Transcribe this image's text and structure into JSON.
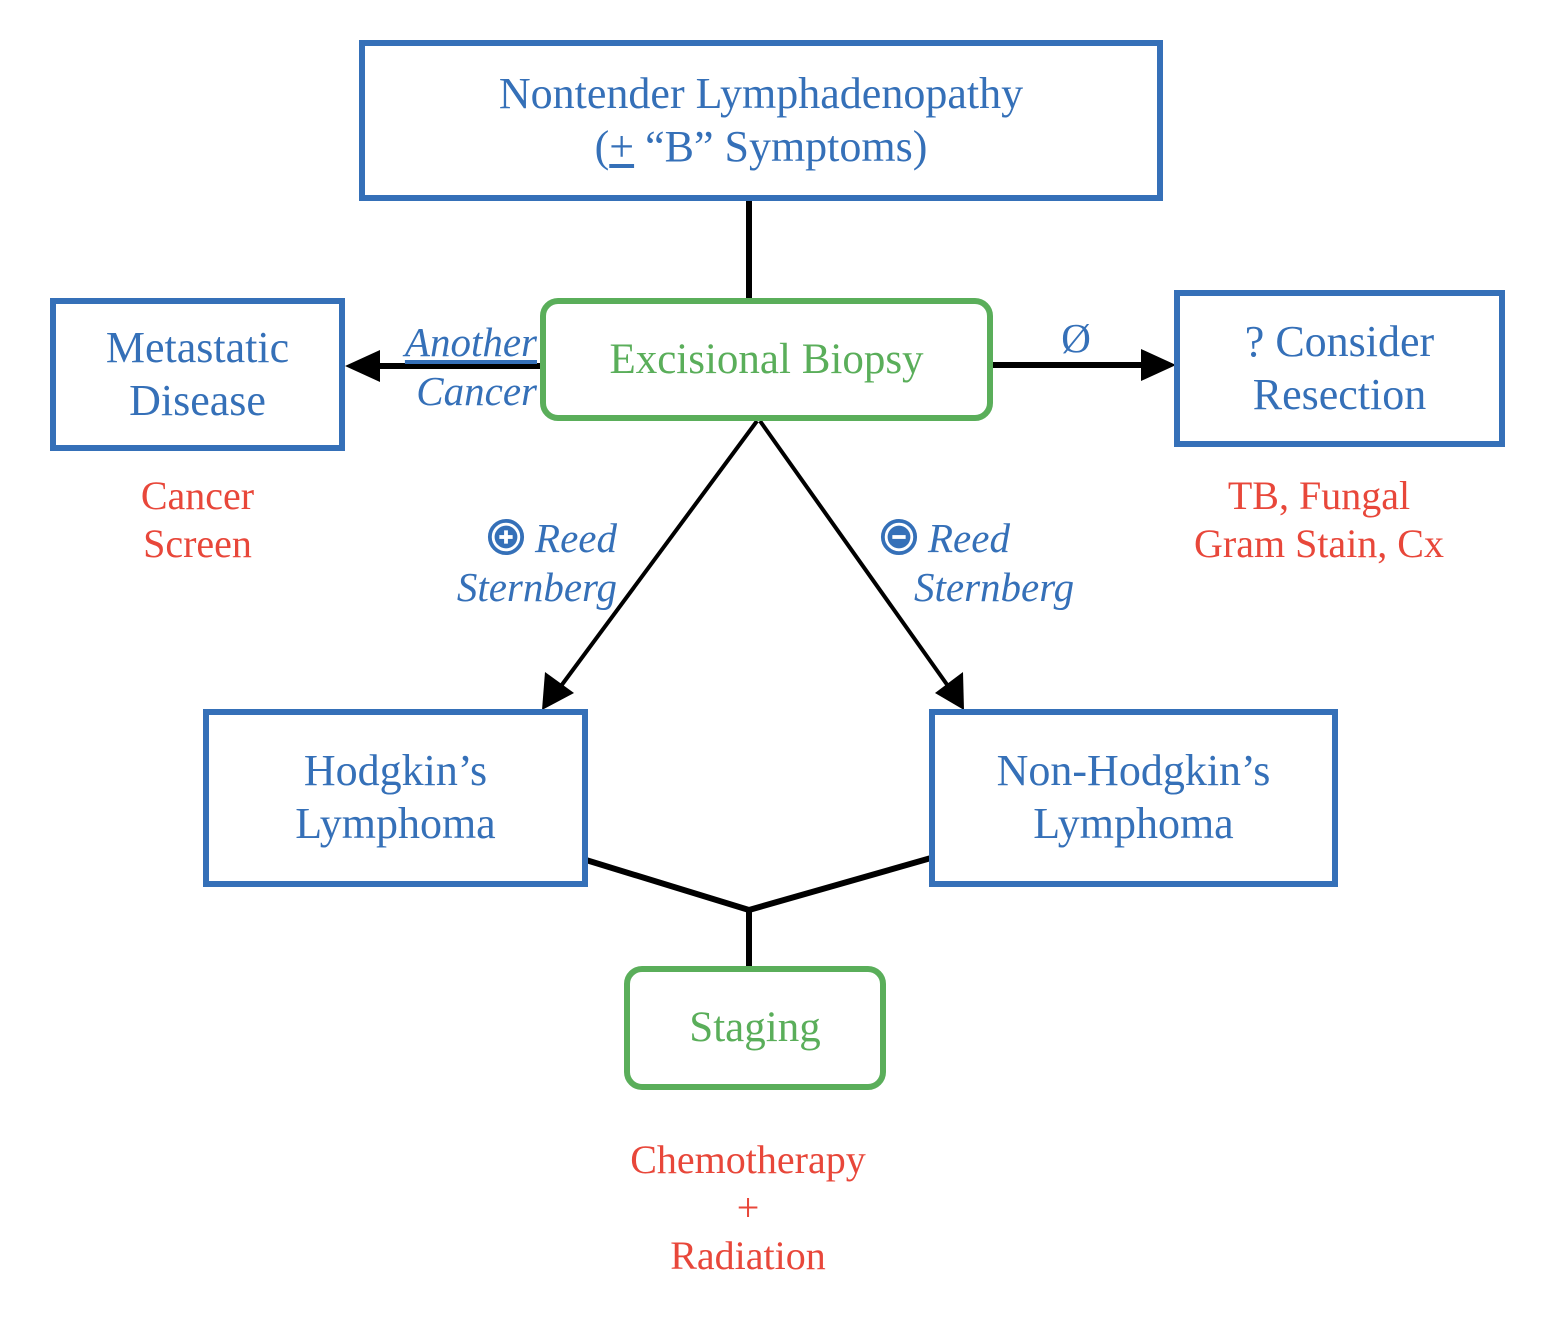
{
  "nodes": {
    "top": {
      "line1": "Nontender Lymphadenopathy",
      "line2_open": "(",
      "line2_pm": "+",
      "line2_rest": " “B” Symptoms)"
    },
    "biopsy": {
      "label": "Excisional Biopsy"
    },
    "metastatic": {
      "line1": "Metastatic",
      "line2": "Disease"
    },
    "resection": {
      "line1": "? Consider",
      "line2": "Resection"
    },
    "hodgkin": {
      "line1": "Hodgkin’s",
      "line2": "Lymphoma"
    },
    "nonhodgkin": {
      "line1": "Non-Hodgkin’s",
      "line2": "Lymphoma"
    },
    "staging": {
      "label": "Staging"
    }
  },
  "edge_labels": {
    "another_cancer": {
      "line1": "Another",
      "line2": "Cancer"
    },
    "null": {
      "label": "Ø"
    },
    "positive_rs": {
      "line1": "Reed",
      "line2": "Sternberg",
      "icon": "plus-circle-icon"
    },
    "negative_rs": {
      "line1": "Reed",
      "line2": "Sternberg",
      "icon": "minus-circle-icon"
    }
  },
  "notes": {
    "cancer_screen": {
      "line1": "Cancer",
      "line2": "Screen"
    },
    "tb_fungal": {
      "line1": "TB, Fungal",
      "line2": "Gram Stain, Cx"
    },
    "treatment": {
      "line1": "Chemotherapy",
      "line2": "+",
      "line3": "Radiation"
    }
  },
  "colors": {
    "box_blue": "#3570b8",
    "box_green": "#5aae5a",
    "note_red": "#e8473a",
    "connector": "#000000"
  }
}
